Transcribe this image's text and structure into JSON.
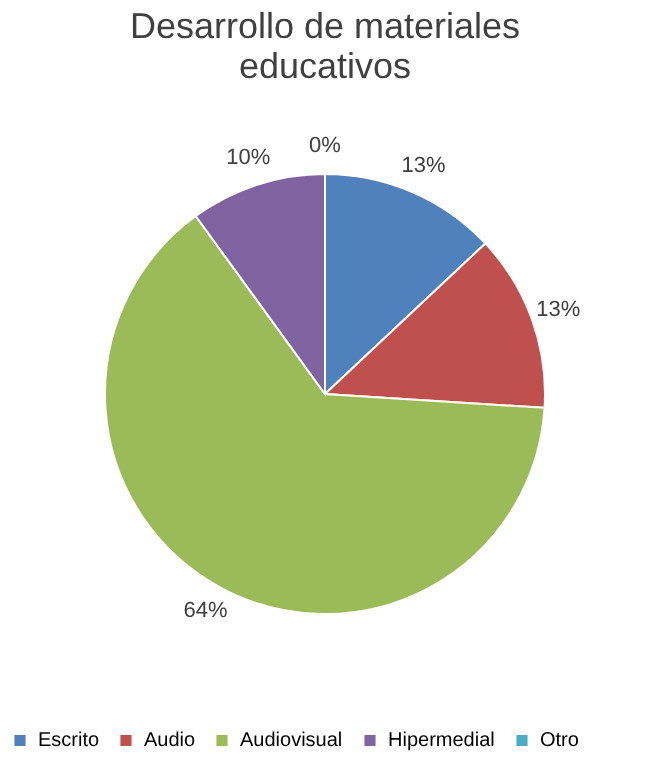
{
  "chart_data": {
    "type": "pie",
    "title": "Desarrollo de materiales educativos",
    "categories": [
      "Escrito",
      "Audio",
      "Audiovisual",
      "Hipermedial",
      "Otro"
    ],
    "values": [
      13,
      13,
      64,
      10,
      0
    ],
    "value_labels": [
      "13%",
      "13%",
      "64%",
      "10%",
      "0%"
    ],
    "colors": [
      "#4f81bd",
      "#c0504d",
      "#9bbb59",
      "#8064a2",
      "#4bacc6"
    ],
    "legend": "bottom"
  }
}
